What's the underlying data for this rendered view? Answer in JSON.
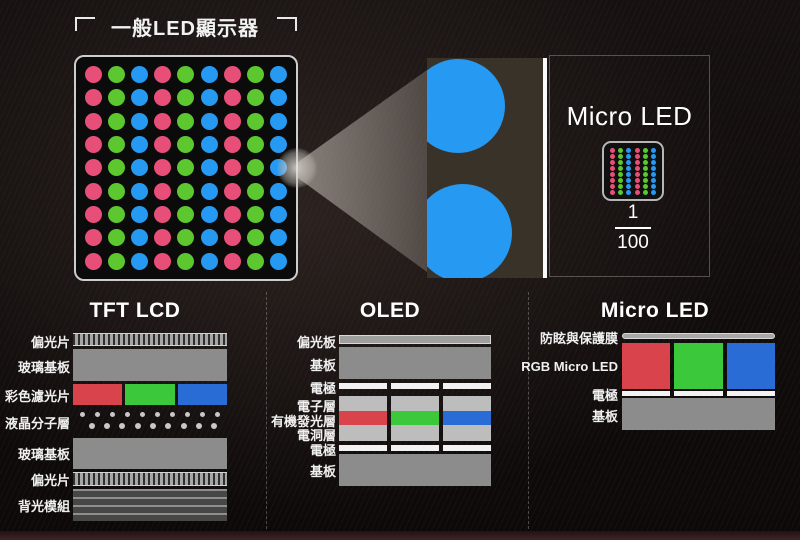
{
  "palette": {
    "led_red": "#e84f78",
    "led_green": "#5cc72e",
    "led_blue": "#2699f2",
    "filter_red": "#d8434c",
    "filter_green": "#3bc93b",
    "filter_blue": "#2a6cd5",
    "gray_substrate": "#8c8c8c",
    "gray_light": "#bdbdbd",
    "white_layer": "#f2f2f2",
    "lc_dot": "#c8c8c8"
  },
  "top": {
    "title": "一般LED顯示器",
    "led_grid": {
      "rows": 9,
      "cols": 9,
      "column_colors": [
        "led_red",
        "led_green",
        "led_blue"
      ]
    },
    "magnifier": {
      "label": "Micro LED",
      "micro_grid": {
        "rows": 8,
        "cols": 6,
        "column_colors": [
          "led_red",
          "led_green",
          "led_blue"
        ]
      },
      "fraction": {
        "numerator": "1",
        "denominator": "100"
      }
    }
  },
  "sections": {
    "tft": {
      "title": "TFT LCD",
      "labels": [
        "偏光片",
        "玻璃基板",
        "彩色濾光片",
        "液晶分子層",
        "玻璃基板",
        "偏光片",
        "背光模組"
      ],
      "lc_row_a": {
        "rows": 1,
        "cols": 10,
        "column_colors": [
          "lc_dot"
        ]
      },
      "lc_row_b": {
        "rows": 1,
        "cols": 9,
        "column_colors": [
          "lc_dot"
        ]
      }
    },
    "oled": {
      "title": "OLED",
      "labels": [
        "偏光板",
        "基板",
        "電極",
        "電子層",
        "有機發光層",
        "電洞層",
        "電極",
        "基板"
      ]
    },
    "micro": {
      "title": "Micro LED",
      "labels": [
        "防眩與保護膜",
        "RGB Micro LED",
        "電極",
        "基板"
      ]
    }
  }
}
